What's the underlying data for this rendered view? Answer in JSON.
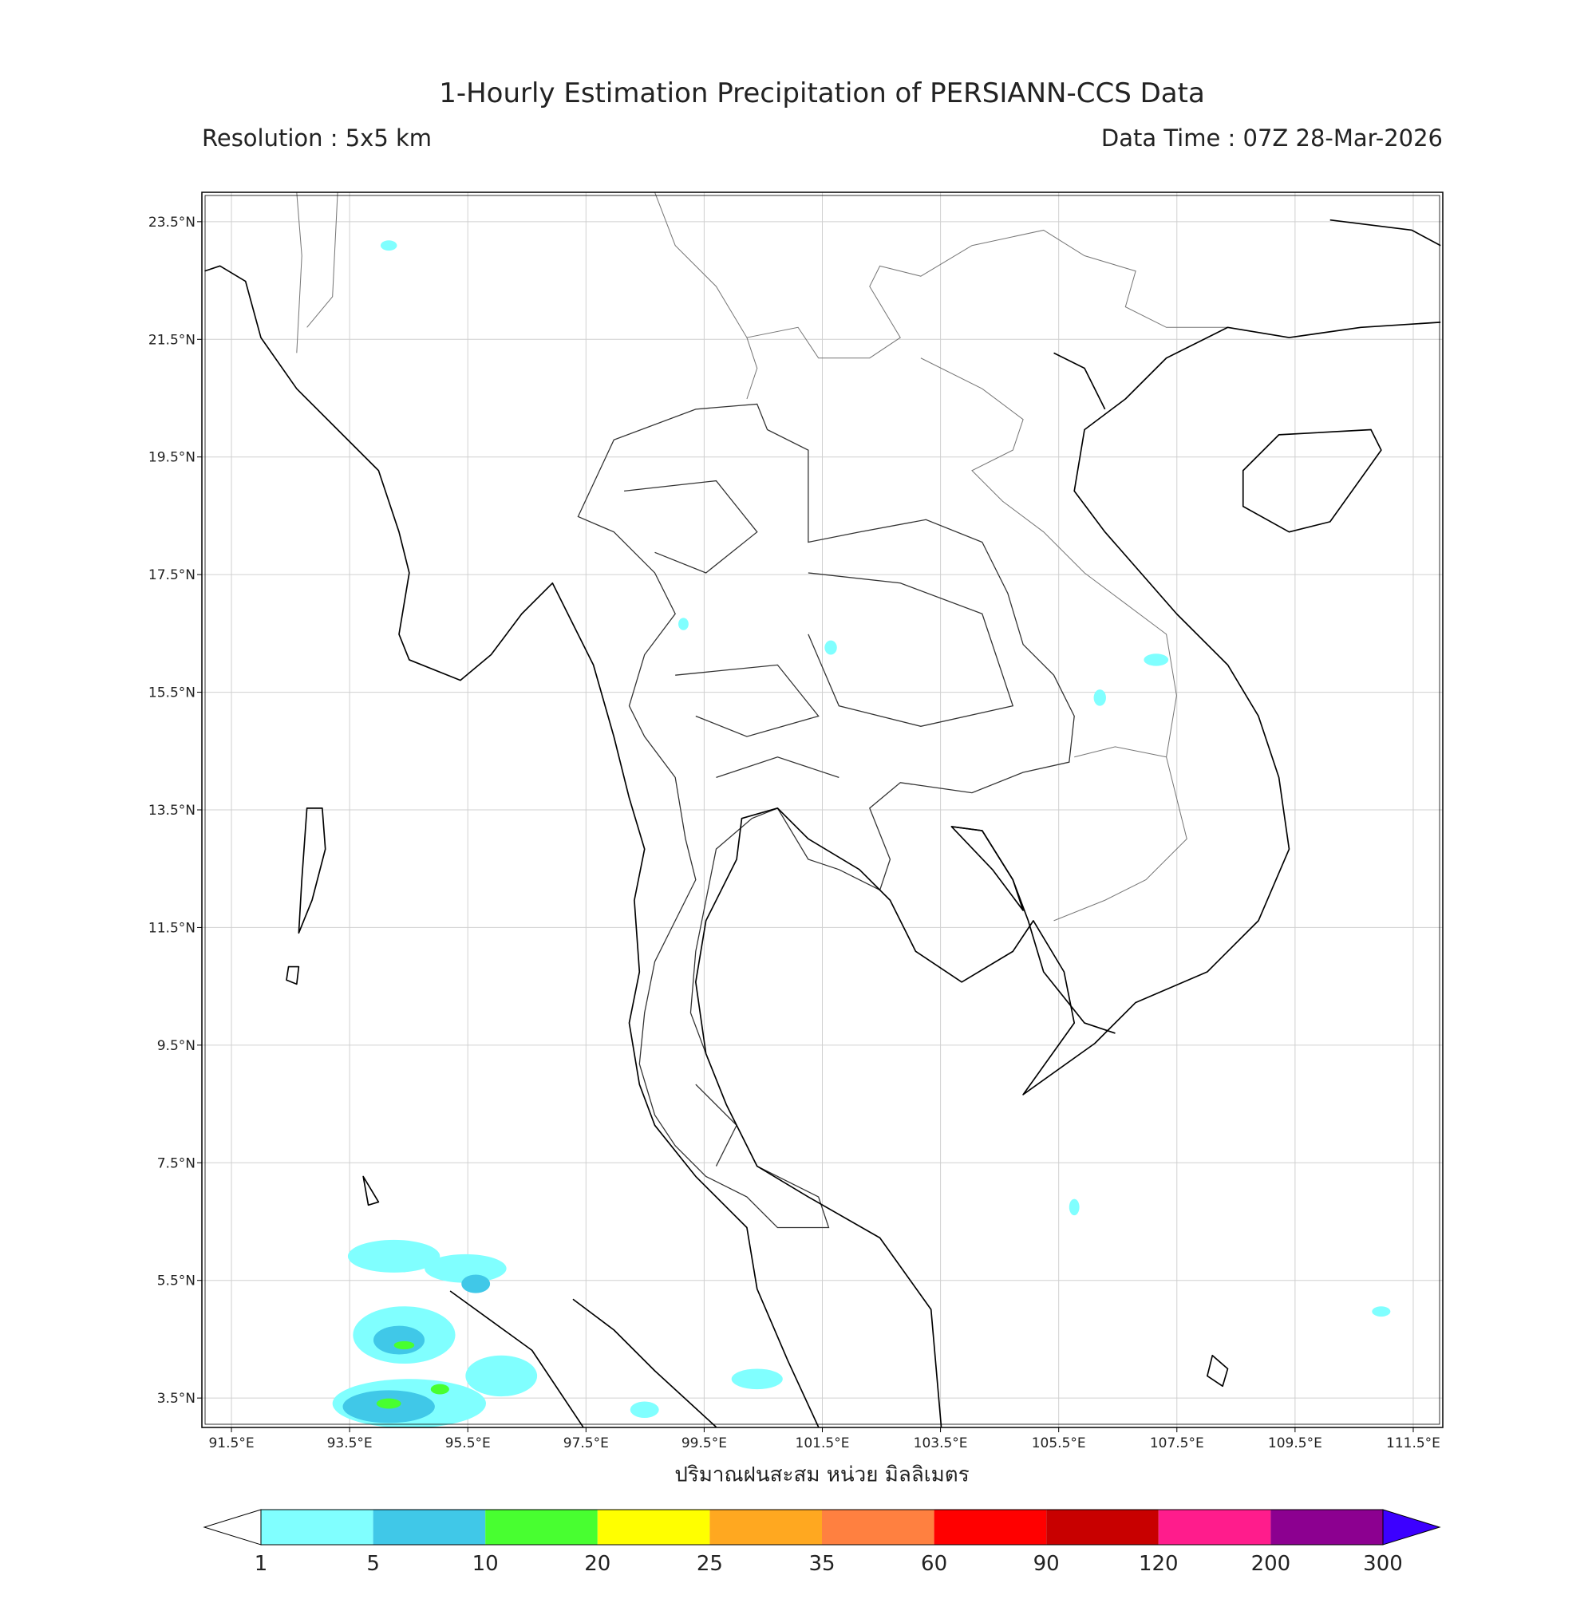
{
  "map": {
    "title": "1-Hourly Estimation Precipitation of PERSIANN-CCS Data",
    "left_subtitle": "Resolution : 5x5 km",
    "right_subtitle": "Data Time : 07Z 28-Mar-2026",
    "xlabel": "ปริมาณฝนสะสม หน่วย มิลลิเมตร",
    "lon_range": [
      91,
      112
    ],
    "lat_range": [
      3,
      24
    ],
    "lon_ticks": [
      {
        "value": 91.5,
        "label": "91.5°E"
      },
      {
        "value": 93.5,
        "label": "93.5°E"
      },
      {
        "value": 95.5,
        "label": "95.5°E"
      },
      {
        "value": 97.5,
        "label": "97.5°E"
      },
      {
        "value": 99.5,
        "label": "99.5°E"
      },
      {
        "value": 101.5,
        "label": "101.5°E"
      },
      {
        "value": 103.5,
        "label": "103.5°E"
      },
      {
        "value": 105.5,
        "label": "105.5°E"
      },
      {
        "value": 107.5,
        "label": "107.5°E"
      },
      {
        "value": 109.5,
        "label": "109.5°E"
      },
      {
        "value": 111.5,
        "label": "111.5°E"
      }
    ],
    "lat_ticks": [
      {
        "value": 3.5,
        "label": "3.5°N"
      },
      {
        "value": 5.5,
        "label": "5.5°N"
      },
      {
        "value": 7.5,
        "label": "7.5°N"
      },
      {
        "value": 9.5,
        "label": "9.5°N"
      },
      {
        "value": 11.5,
        "label": "11.5°N"
      },
      {
        "value": 13.5,
        "label": "13.5°N"
      },
      {
        "value": 15.5,
        "label": "15.5°N"
      },
      {
        "value": 17.5,
        "label": "17.5°N"
      },
      {
        "value": 19.5,
        "label": "19.5°N"
      },
      {
        "value": 21.5,
        "label": "21.5°N"
      },
      {
        "value": 23.5,
        "label": "23.5°N"
      }
    ],
    "colorbar": {
      "levels": [
        1,
        5,
        10,
        20,
        25,
        35,
        60,
        90,
        120,
        200,
        300
      ],
      "colors": [
        "#80ffff",
        "#40c8e8",
        "#48ff30",
        "#ffff00",
        "#ffa820",
        "#ff8040",
        "#ff0000",
        "#c80000",
        "#ff1c8c",
        "#8c0090"
      ],
      "under_color": "#ffffff",
      "over_color": "#3c00ff"
    }
  }
}
